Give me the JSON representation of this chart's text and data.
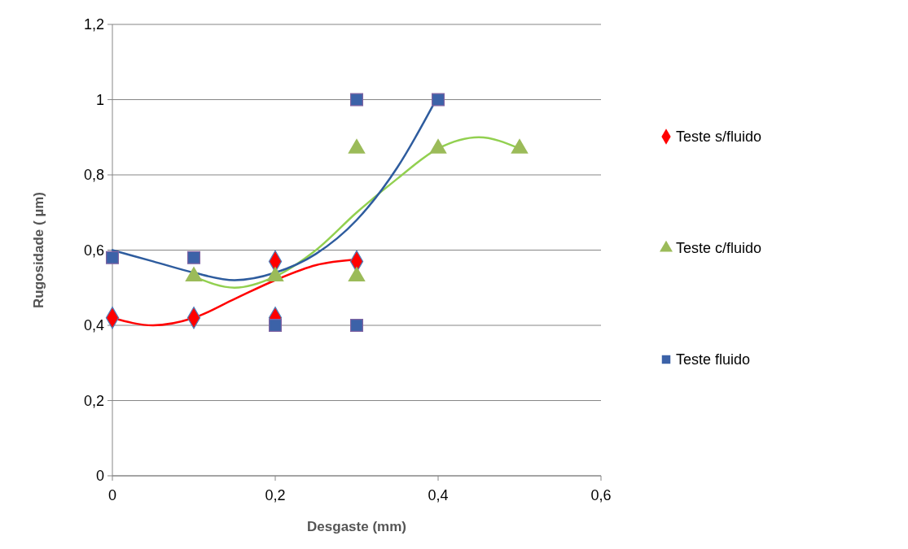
{
  "chart_data": {
    "type": "scatter",
    "xlabel": "Desgaste (mm)",
    "ylabel": "Rugosidade ( µm)",
    "xlim": [
      0,
      0.6
    ],
    "xticks": [
      {
        "value": 0,
        "label": "0"
      },
      {
        "value": 0.2,
        "label": "0,2"
      },
      {
        "value": 0.4,
        "label": "0,4"
      },
      {
        "value": 0.6,
        "label": "0,6"
      }
    ],
    "ylim": [
      0,
      1.2
    ],
    "yticks": [
      {
        "value": 0,
        "label": "0"
      },
      {
        "value": 0.2,
        "label": "0,2"
      },
      {
        "value": 0.4,
        "label": "0,4"
      },
      {
        "value": 0.6,
        "label": "0,6"
      },
      {
        "value": 0.8,
        "label": "0,8"
      },
      {
        "value": 1,
        "label": "1"
      },
      {
        "value": 1.2,
        "label": "1,2"
      }
    ],
    "grid": "y",
    "legend": "right",
    "series": [
      {
        "type": "line",
        "color": "#ff0000",
        "marker": "none",
        "x": [
          0,
          0.05,
          0.1,
          0.15,
          0.2,
          0.25,
          0.3
        ],
        "values": [
          0.42,
          0.4,
          0.42,
          0.47,
          0.52,
          0.56,
          0.575
        ]
      },
      {
        "type": "line",
        "color": "#92d050",
        "marker": "none",
        "x": [
          0.1,
          0.15,
          0.2,
          0.25,
          0.3,
          0.35,
          0.4,
          0.45,
          0.5
        ],
        "values": [
          0.53,
          0.5,
          0.53,
          0.6,
          0.7,
          0.79,
          0.87,
          0.9,
          0.87
        ]
      },
      {
        "type": "line",
        "color": "#2e5c9e",
        "marker": "none",
        "x": [
          0,
          0.05,
          0.1,
          0.15,
          0.2,
          0.25,
          0.3,
          0.35,
          0.4
        ],
        "values": [
          0.6,
          0.57,
          0.54,
          0.52,
          0.54,
          0.59,
          0.68,
          0.82,
          1.01
        ]
      },
      {
        "name": "Teste s/fluido",
        "color": "#ff0000",
        "marker": "diamond",
        "x": [
          0,
          0.1,
          0.2,
          0.2,
          0.3
        ],
        "values": [
          0.42,
          0.42,
          0.42,
          0.57,
          0.57
        ]
      },
      {
        "name": "Teste c/fluido",
        "color": "#9bbb59",
        "marker": "triangle",
        "x": [
          0.1,
          0.2,
          0.3,
          0.3,
          0.4,
          0.5
        ],
        "values": [
          0.53,
          0.53,
          0.53,
          0.87,
          0.87,
          0.87
        ]
      },
      {
        "name": "Teste fluido",
        "color": "#3c62a8",
        "marker": "square",
        "x": [
          0,
          0.1,
          0.2,
          0.3,
          0.3,
          0.4
        ],
        "values": [
          0.58,
          0.58,
          0.4,
          0.4,
          1.0,
          1.0
        ]
      }
    ]
  }
}
